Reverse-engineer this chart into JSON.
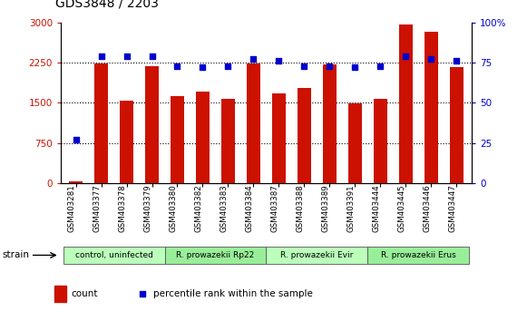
{
  "title": "GDS3848 / 2203",
  "samples": [
    "GSM403281",
    "GSM403377",
    "GSM403378",
    "GSM403379",
    "GSM403380",
    "GSM403382",
    "GSM403383",
    "GSM403384",
    "GSM403387",
    "GSM403388",
    "GSM403389",
    "GSM403391",
    "GSM403444",
    "GSM403445",
    "GSM403446",
    "GSM403447"
  ],
  "counts": [
    30,
    2230,
    1540,
    2190,
    1630,
    1710,
    1575,
    2230,
    1680,
    1780,
    2210,
    1490,
    1580,
    2960,
    2820,
    2160
  ],
  "percentiles": [
    27,
    79,
    79,
    79,
    73,
    72,
    73,
    77,
    76,
    73,
    73,
    72,
    73,
    79,
    77,
    76
  ],
  "groups": [
    {
      "label": "control, uninfected",
      "start": 0,
      "end": 3,
      "color": "#bbffbb"
    },
    {
      "label": "R. prowazekii Rp22",
      "start": 4,
      "end": 7,
      "color": "#99ee99"
    },
    {
      "label": "R. prowazekii Evir",
      "start": 8,
      "end": 11,
      "color": "#bbffbb"
    },
    {
      "label": "R. prowazekii Erus",
      "start": 12,
      "end": 15,
      "color": "#99ee99"
    }
  ],
  "bar_color": "#cc1100",
  "dot_color": "#0000cc",
  "left_ylim": [
    0,
    3000
  ],
  "right_ylim": [
    0,
    100
  ],
  "left_yticks": [
    0,
    750,
    1500,
    2250,
    3000
  ],
  "right_yticks": [
    0,
    25,
    50,
    75,
    100
  ],
  "hline_values": [
    750,
    1500,
    2250
  ],
  "left_tick_color": "#cc1100",
  "right_tick_color": "#0000cc",
  "strain_label": "strain",
  "legend_count_label": "count",
  "legend_pct_label": "percentile rank within the sample",
  "fig_width": 5.81,
  "fig_height": 3.54,
  "dpi": 100
}
